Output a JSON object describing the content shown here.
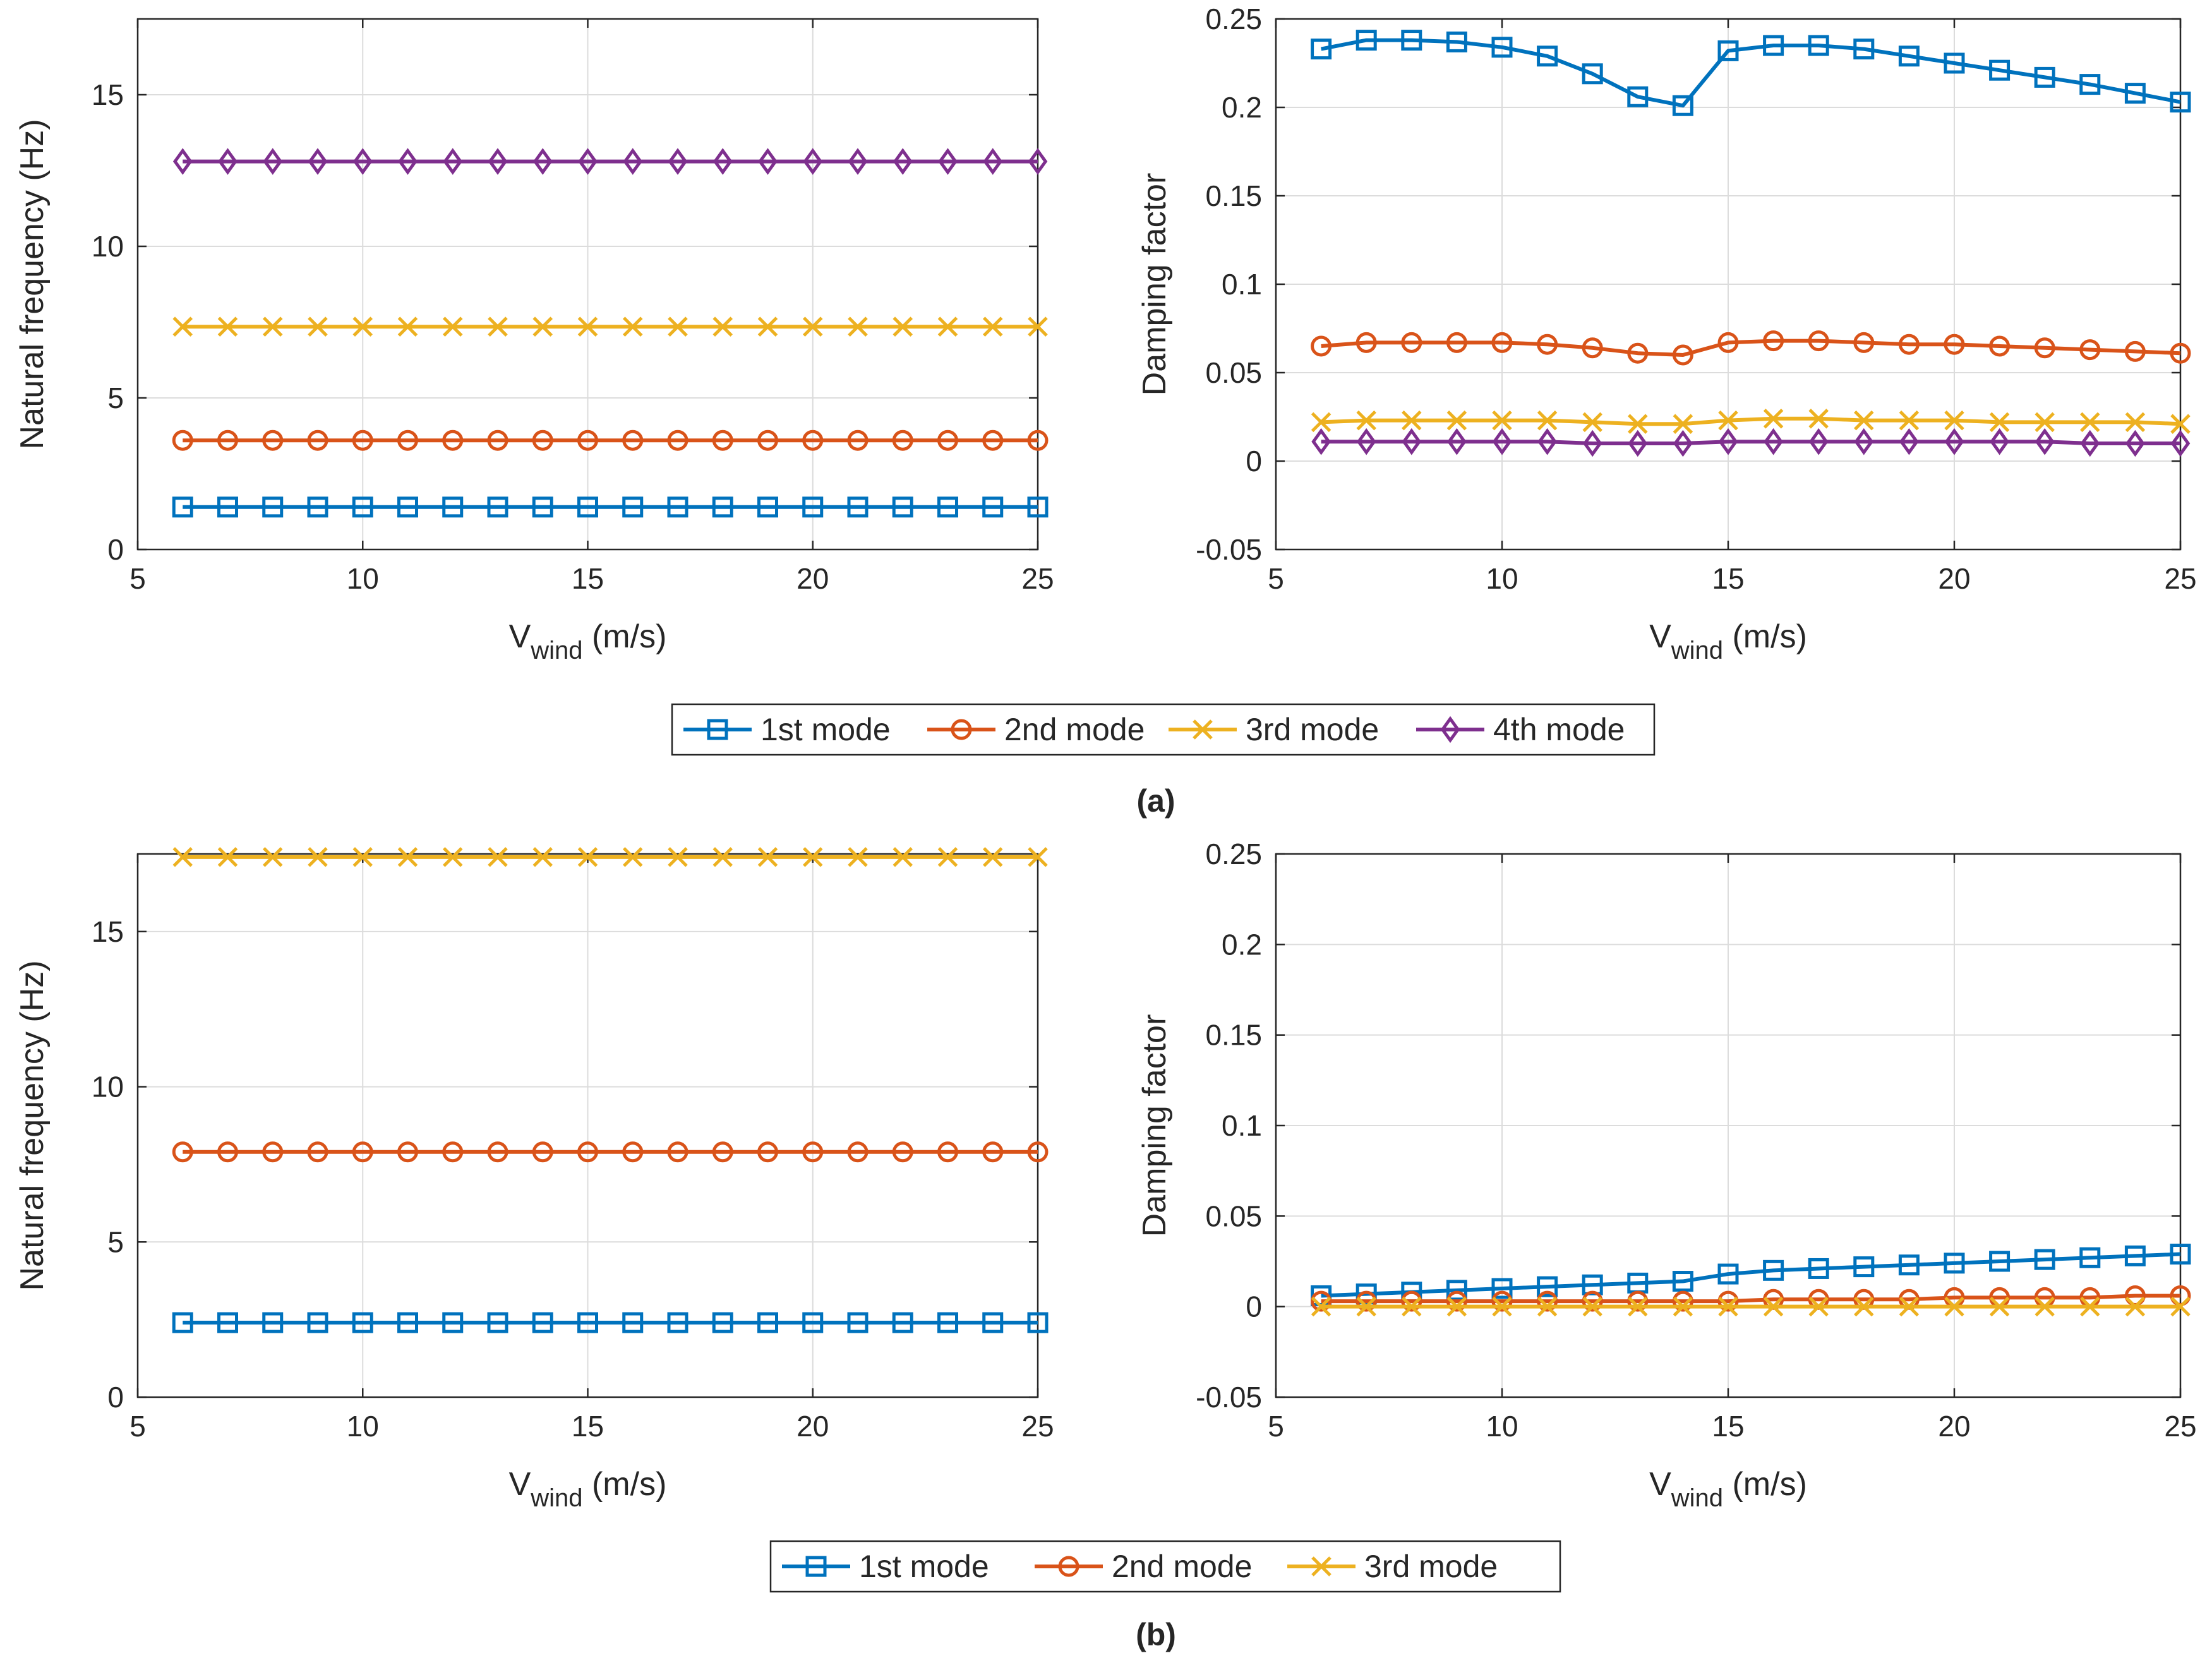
{
  "colors": {
    "mode1": "#0072BD",
    "mode2": "#D95319",
    "mode3": "#EDB120",
    "mode4": "#7E2F8E",
    "axis": "#262626",
    "grid": "#dcdcdc"
  },
  "captions": {
    "a": "(a)",
    "b": "(b)"
  },
  "legends": {
    "a": [
      "1st mode",
      "2nd mode",
      "3rd mode",
      "4th mode"
    ],
    "b": [
      "1st mode",
      "2nd mode",
      "3rd mode"
    ]
  },
  "chart_data": [
    {
      "id": "a-freq",
      "type": "line",
      "xlabel": "V",
      "xlabel_sub": "wind",
      "xlabel_unit": " (m/s)",
      "ylabel": "Natural frequency (Hz)",
      "xlim": [
        5,
        25
      ],
      "ylim": [
        0,
        17.5
      ],
      "xticks": [
        5,
        10,
        15,
        20,
        25
      ],
      "xtick_labels": [
        "5",
        "10",
        "15",
        "20",
        "25"
      ],
      "yticks": [
        0,
        5,
        10,
        15
      ],
      "ytick_labels": [
        "0",
        "5",
        "10",
        "15"
      ],
      "grid": true,
      "x": [
        6,
        7,
        8,
        9,
        10,
        11,
        12,
        13,
        14,
        15,
        16,
        17,
        18,
        19,
        20,
        21,
        22,
        23,
        24,
        25
      ],
      "series": [
        {
          "name": "1st mode",
          "color": "mode1",
          "marker": "square",
          "values": [
            1.4,
            1.4,
            1.4,
            1.4,
            1.4,
            1.4,
            1.4,
            1.4,
            1.4,
            1.4,
            1.4,
            1.4,
            1.4,
            1.4,
            1.4,
            1.4,
            1.4,
            1.4,
            1.4,
            1.4
          ]
        },
        {
          "name": "2nd mode",
          "color": "mode2",
          "marker": "circle",
          "values": [
            3.6,
            3.6,
            3.6,
            3.6,
            3.6,
            3.6,
            3.6,
            3.6,
            3.6,
            3.6,
            3.6,
            3.6,
            3.6,
            3.6,
            3.6,
            3.6,
            3.6,
            3.6,
            3.6,
            3.6
          ]
        },
        {
          "name": "3rd mode",
          "color": "mode3",
          "marker": "x",
          "values": [
            7.35,
            7.35,
            7.35,
            7.35,
            7.35,
            7.35,
            7.35,
            7.35,
            7.35,
            7.35,
            7.35,
            7.35,
            7.35,
            7.35,
            7.35,
            7.35,
            7.35,
            7.35,
            7.35,
            7.35
          ]
        },
        {
          "name": "4th mode",
          "color": "mode4",
          "marker": "diamond",
          "values": [
            12.8,
            12.8,
            12.8,
            12.8,
            12.8,
            12.8,
            12.8,
            12.8,
            12.8,
            12.8,
            12.8,
            12.8,
            12.8,
            12.8,
            12.8,
            12.8,
            12.8,
            12.8,
            12.8,
            12.8
          ]
        }
      ]
    },
    {
      "id": "a-damp",
      "type": "line",
      "xlabel": "V",
      "xlabel_sub": "wind",
      "xlabel_unit": " (m/s)",
      "ylabel": "Damping factor",
      "xlim": [
        5,
        25
      ],
      "ylim": [
        -0.05,
        0.25
      ],
      "xticks": [
        5,
        10,
        15,
        20,
        25
      ],
      "xtick_labels": [
        "5",
        "10",
        "15",
        "20",
        "25"
      ],
      "yticks": [
        -0.05,
        0,
        0.05,
        0.1,
        0.15,
        0.2,
        0.25
      ],
      "ytick_labels": [
        "-0.05",
        "0",
        "0.05",
        "0.1",
        "0.15",
        "0.2",
        "0.25"
      ],
      "grid": true,
      "x": [
        6,
        7,
        8,
        9,
        10,
        11,
        12,
        13,
        14,
        15,
        16,
        17,
        18,
        19,
        20,
        21,
        22,
        23,
        24,
        25
      ],
      "series": [
        {
          "name": "1st mode",
          "color": "mode1",
          "marker": "square",
          "values": [
            0.233,
            0.238,
            0.238,
            0.237,
            0.234,
            0.229,
            0.219,
            0.206,
            0.201,
            0.232,
            0.235,
            0.235,
            0.233,
            0.229,
            0.225,
            0.221,
            0.217,
            0.213,
            0.208,
            0.203
          ]
        },
        {
          "name": "2nd mode",
          "color": "mode2",
          "marker": "circle",
          "values": [
            0.065,
            0.067,
            0.067,
            0.067,
            0.067,
            0.066,
            0.064,
            0.061,
            0.06,
            0.067,
            0.068,
            0.068,
            0.067,
            0.066,
            0.066,
            0.065,
            0.064,
            0.063,
            0.062,
            0.061
          ]
        },
        {
          "name": "3rd mode",
          "color": "mode3",
          "marker": "x",
          "values": [
            0.022,
            0.023,
            0.023,
            0.023,
            0.023,
            0.023,
            0.022,
            0.021,
            0.021,
            0.023,
            0.024,
            0.024,
            0.023,
            0.023,
            0.023,
            0.022,
            0.022,
            0.022,
            0.022,
            0.021
          ]
        },
        {
          "name": "4th mode",
          "color": "mode4",
          "marker": "diamond",
          "values": [
            0.011,
            0.011,
            0.011,
            0.011,
            0.011,
            0.011,
            0.01,
            0.01,
            0.01,
            0.011,
            0.011,
            0.011,
            0.011,
            0.011,
            0.011,
            0.011,
            0.011,
            0.01,
            0.01,
            0.01
          ]
        }
      ]
    },
    {
      "id": "b-freq",
      "type": "line",
      "xlabel": "V",
      "xlabel_sub": "wind",
      "xlabel_unit": " (m/s)",
      "ylabel": "Natural frequency (Hz)",
      "xlim": [
        5,
        25
      ],
      "ylim": [
        0,
        17.5
      ],
      "xticks": [
        5,
        10,
        15,
        20,
        25
      ],
      "xtick_labels": [
        "5",
        "10",
        "15",
        "20",
        "25"
      ],
      "yticks": [
        0,
        5,
        10,
        15
      ],
      "ytick_labels": [
        "0",
        "5",
        "10",
        "15"
      ],
      "grid": true,
      "x": [
        6,
        7,
        8,
        9,
        10,
        11,
        12,
        13,
        14,
        15,
        16,
        17,
        18,
        19,
        20,
        21,
        22,
        23,
        24,
        25
      ],
      "series": [
        {
          "name": "1st mode",
          "color": "mode1",
          "marker": "square",
          "values": [
            2.4,
            2.4,
            2.4,
            2.4,
            2.4,
            2.4,
            2.4,
            2.4,
            2.4,
            2.4,
            2.4,
            2.4,
            2.4,
            2.4,
            2.4,
            2.4,
            2.4,
            2.4,
            2.4,
            2.4
          ]
        },
        {
          "name": "2nd mode",
          "color": "mode2",
          "marker": "circle",
          "values": [
            7.9,
            7.9,
            7.9,
            7.9,
            7.9,
            7.9,
            7.9,
            7.9,
            7.9,
            7.9,
            7.9,
            7.9,
            7.9,
            7.9,
            7.9,
            7.9,
            7.9,
            7.9,
            7.9,
            7.9
          ]
        },
        {
          "name": "3rd mode",
          "color": "mode3",
          "marker": "x",
          "values": [
            17.4,
            17.4,
            17.4,
            17.4,
            17.4,
            17.4,
            17.4,
            17.4,
            17.4,
            17.4,
            17.4,
            17.4,
            17.4,
            17.4,
            17.4,
            17.4,
            17.4,
            17.4,
            17.4,
            17.4
          ]
        }
      ]
    },
    {
      "id": "b-damp",
      "type": "line",
      "xlabel": "V",
      "xlabel_sub": "wind",
      "xlabel_unit": " (m/s)",
      "ylabel": "Damping factor",
      "xlim": [
        5,
        25
      ],
      "ylim": [
        -0.05,
        0.25
      ],
      "xticks": [
        5,
        10,
        15,
        20,
        25
      ],
      "xtick_labels": [
        "5",
        "10",
        "15",
        "20",
        "25"
      ],
      "yticks": [
        -0.05,
        0,
        0.05,
        0.1,
        0.15,
        0.2,
        0.25
      ],
      "ytick_labels": [
        "-0.05",
        "0",
        "0.05",
        "0.1",
        "0.15",
        "0.2",
        "0.25"
      ],
      "grid": true,
      "x": [
        6,
        7,
        8,
        9,
        10,
        11,
        12,
        13,
        14,
        15,
        16,
        17,
        18,
        19,
        20,
        21,
        22,
        23,
        24,
        25
      ],
      "series": [
        {
          "name": "1st mode",
          "color": "mode1",
          "marker": "square",
          "values": [
            0.006,
            0.007,
            0.008,
            0.009,
            0.01,
            0.011,
            0.012,
            0.013,
            0.014,
            0.018,
            0.02,
            0.021,
            0.022,
            0.023,
            0.024,
            0.025,
            0.026,
            0.027,
            0.028,
            0.029
          ]
        },
        {
          "name": "2nd mode",
          "color": "mode2",
          "marker": "circle",
          "values": [
            0.003,
            0.003,
            0.003,
            0.003,
            0.003,
            0.003,
            0.003,
            0.003,
            0.003,
            0.003,
            0.004,
            0.004,
            0.004,
            0.004,
            0.005,
            0.005,
            0.005,
            0.005,
            0.006,
            0.006
          ]
        },
        {
          "name": "3rd mode",
          "color": "mode3",
          "marker": "x",
          "values": [
            0.0,
            0.0,
            0.0,
            0.0,
            0.0,
            0.0,
            0.0,
            0.0,
            0.0,
            0.0,
            0.0,
            0.0,
            0.0,
            0.0,
            0.0,
            0.0,
            0.0,
            0.0,
            0.0,
            0.0
          ]
        }
      ]
    }
  ]
}
